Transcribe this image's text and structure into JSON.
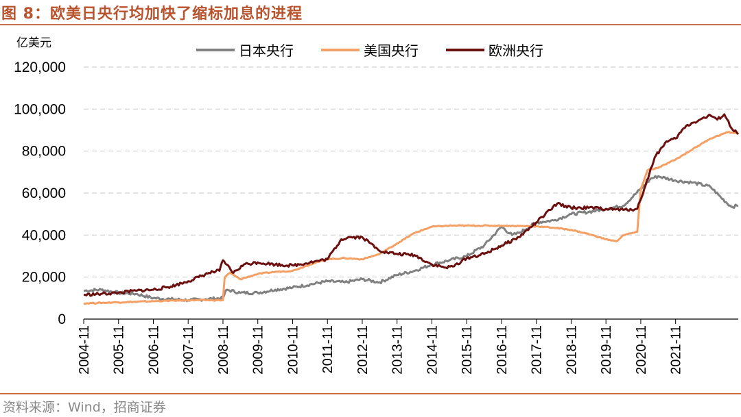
{
  "figure": {
    "title": "图 8：欧美日央行均加快了缩标加息的进程",
    "unit": "亿美元",
    "source": "资料来源：Wind，招商证券"
  },
  "colors": {
    "japan": "#808080",
    "usa": "#f4a064",
    "europe": "#6b0f0f",
    "accent": "#c8704a"
  },
  "chart_data": {
    "type": "line",
    "title": "图 8：欧美日央行均加快了缩标加息的进程",
    "ylabel": "亿美元",
    "xlabel": "",
    "ylim": [
      0,
      120000
    ],
    "yticks": [
      0,
      20000,
      40000,
      60000,
      80000,
      100000,
      120000
    ],
    "ytick_labels": [
      "0",
      "20,000",
      "40,000",
      "60,000",
      "80,000",
      "100,000",
      "120,000"
    ],
    "xticks": [
      "2004-11",
      "2005-11",
      "2006-11",
      "2007-11",
      "2008-11",
      "2009-11",
      "2010-11",
      "2011-11",
      "2012-11",
      "2013-11",
      "2014-11",
      "2015-11",
      "2016-11",
      "2017-11",
      "2018-11",
      "2019-11",
      "2020-11",
      "2021-11"
    ],
    "x_unit": "years since 2004-11",
    "xlim": [
      0,
      18.8
    ],
    "legend": [
      "日本央行",
      "美国央行",
      "欧洲央行"
    ],
    "legend_position": "top",
    "grid": "horizontal dashed",
    "series": [
      {
        "name": "日本央行",
        "color": "#808080",
        "points": [
          [
            0,
            13500
          ],
          [
            0.5,
            14000
          ],
          [
            1,
            12500
          ],
          [
            1.5,
            12000
          ],
          [
            2,
            10000
          ],
          [
            2.5,
            9500
          ],
          [
            3,
            9000
          ],
          [
            3.5,
            9500
          ],
          [
            4,
            10000
          ],
          [
            4.1,
            14000
          ],
          [
            4.5,
            12500
          ],
          [
            5,
            12500
          ],
          [
            5.5,
            14000
          ],
          [
            6,
            15000
          ],
          [
            6.5,
            16500
          ],
          [
            7,
            18000
          ],
          [
            7.5,
            17500
          ],
          [
            8,
            19000
          ],
          [
            8.5,
            17500
          ],
          [
            9,
            21000
          ],
          [
            9.5,
            23000
          ],
          [
            10,
            26000
          ],
          [
            10.5,
            28000
          ],
          [
            11,
            30000
          ],
          [
            11.5,
            35000
          ],
          [
            12,
            44000
          ],
          [
            12.3,
            40000
          ],
          [
            12.5,
            41000
          ],
          [
            13,
            46000
          ],
          [
            13.5,
            47000
          ],
          [
            14,
            50000
          ],
          [
            14.5,
            51000
          ],
          [
            15,
            52500
          ],
          [
            15.5,
            54000
          ],
          [
            16,
            62000
          ],
          [
            16.3,
            67000
          ],
          [
            16.5,
            68000
          ],
          [
            17,
            66000
          ],
          [
            17.5,
            65000
          ],
          [
            18,
            63000
          ],
          [
            18.3,
            58000
          ],
          [
            18.6,
            53500
          ],
          [
            18.8,
            54000
          ]
        ]
      },
      {
        "name": "美国央行",
        "color": "#f4a064",
        "points": [
          [
            0,
            7500
          ],
          [
            1,
            8000
          ],
          [
            2,
            8500
          ],
          [
            3,
            9000
          ],
          [
            4,
            9000
          ],
          [
            4.05,
            20000
          ],
          [
            4.2,
            22000
          ],
          [
            4.5,
            19000
          ],
          [
            5,
            21500
          ],
          [
            5.5,
            22500
          ],
          [
            6,
            23000
          ],
          [
            6.5,
            26000
          ],
          [
            7,
            28500
          ],
          [
            7.5,
            29000
          ],
          [
            8,
            28500
          ],
          [
            8.5,
            31000
          ],
          [
            9,
            36000
          ],
          [
            9.5,
            41000
          ],
          [
            10,
            44000
          ],
          [
            10.5,
            44500
          ],
          [
            11,
            44500
          ],
          [
            12,
            44500
          ],
          [
            13,
            44200
          ],
          [
            13.5,
            43500
          ],
          [
            14,
            42500
          ],
          [
            14.5,
            40500
          ],
          [
            15,
            38000
          ],
          [
            15.3,
            37000
          ],
          [
            15.5,
            40000
          ],
          [
            15.9,
            41500
          ],
          [
            16,
            62000
          ],
          [
            16.2,
            71000
          ],
          [
            16.5,
            72000
          ],
          [
            17,
            76000
          ],
          [
            17.5,
            81000
          ],
          [
            18,
            86000
          ],
          [
            18.5,
            89000
          ],
          [
            18.8,
            88500
          ]
        ]
      },
      {
        "name": "欧洲央行",
        "color": "#6b0f0f",
        "points": [
          [
            0,
            11500
          ],
          [
            0.5,
            12000
          ],
          [
            1,
            12500
          ],
          [
            1.5,
            13500
          ],
          [
            2,
            14000
          ],
          [
            2.5,
            15500
          ],
          [
            3,
            18000
          ],
          [
            3.3,
            20000
          ],
          [
            3.6,
            22000
          ],
          [
            3.9,
            23000
          ],
          [
            4,
            28000
          ],
          [
            4.1,
            26000
          ],
          [
            4.3,
            22000
          ],
          [
            4.6,
            26000
          ],
          [
            5,
            27000
          ],
          [
            5.5,
            26000
          ],
          [
            6,
            25500
          ],
          [
            6.5,
            27000
          ],
          [
            7,
            28500
          ],
          [
            7.4,
            38000
          ],
          [
            7.6,
            39000
          ],
          [
            8,
            39000
          ],
          [
            8.4,
            34000
          ],
          [
            8.6,
            32000
          ],
          [
            9,
            31000
          ],
          [
            9.5,
            30500
          ],
          [
            10,
            26000
          ],
          [
            10.4,
            24500
          ],
          [
            10.6,
            25000
          ],
          [
            11,
            29000
          ],
          [
            11.5,
            31000
          ],
          [
            12,
            35000
          ],
          [
            12.5,
            39000
          ],
          [
            13,
            46000
          ],
          [
            13.4,
            52000
          ],
          [
            13.6,
            55000
          ],
          [
            14,
            53000
          ],
          [
            14.5,
            53000
          ],
          [
            15,
            52500
          ],
          [
            15.5,
            52000
          ],
          [
            15.9,
            52500
          ],
          [
            16.1,
            62000
          ],
          [
            16.4,
            77000
          ],
          [
            16.7,
            84000
          ],
          [
            17,
            86000
          ],
          [
            17.3,
            92000
          ],
          [
            17.7,
            95000
          ],
          [
            18,
            97000
          ],
          [
            18.2,
            95000
          ],
          [
            18.4,
            97500
          ],
          [
            18.6,
            91000
          ],
          [
            18.8,
            88000
          ]
        ]
      }
    ]
  }
}
